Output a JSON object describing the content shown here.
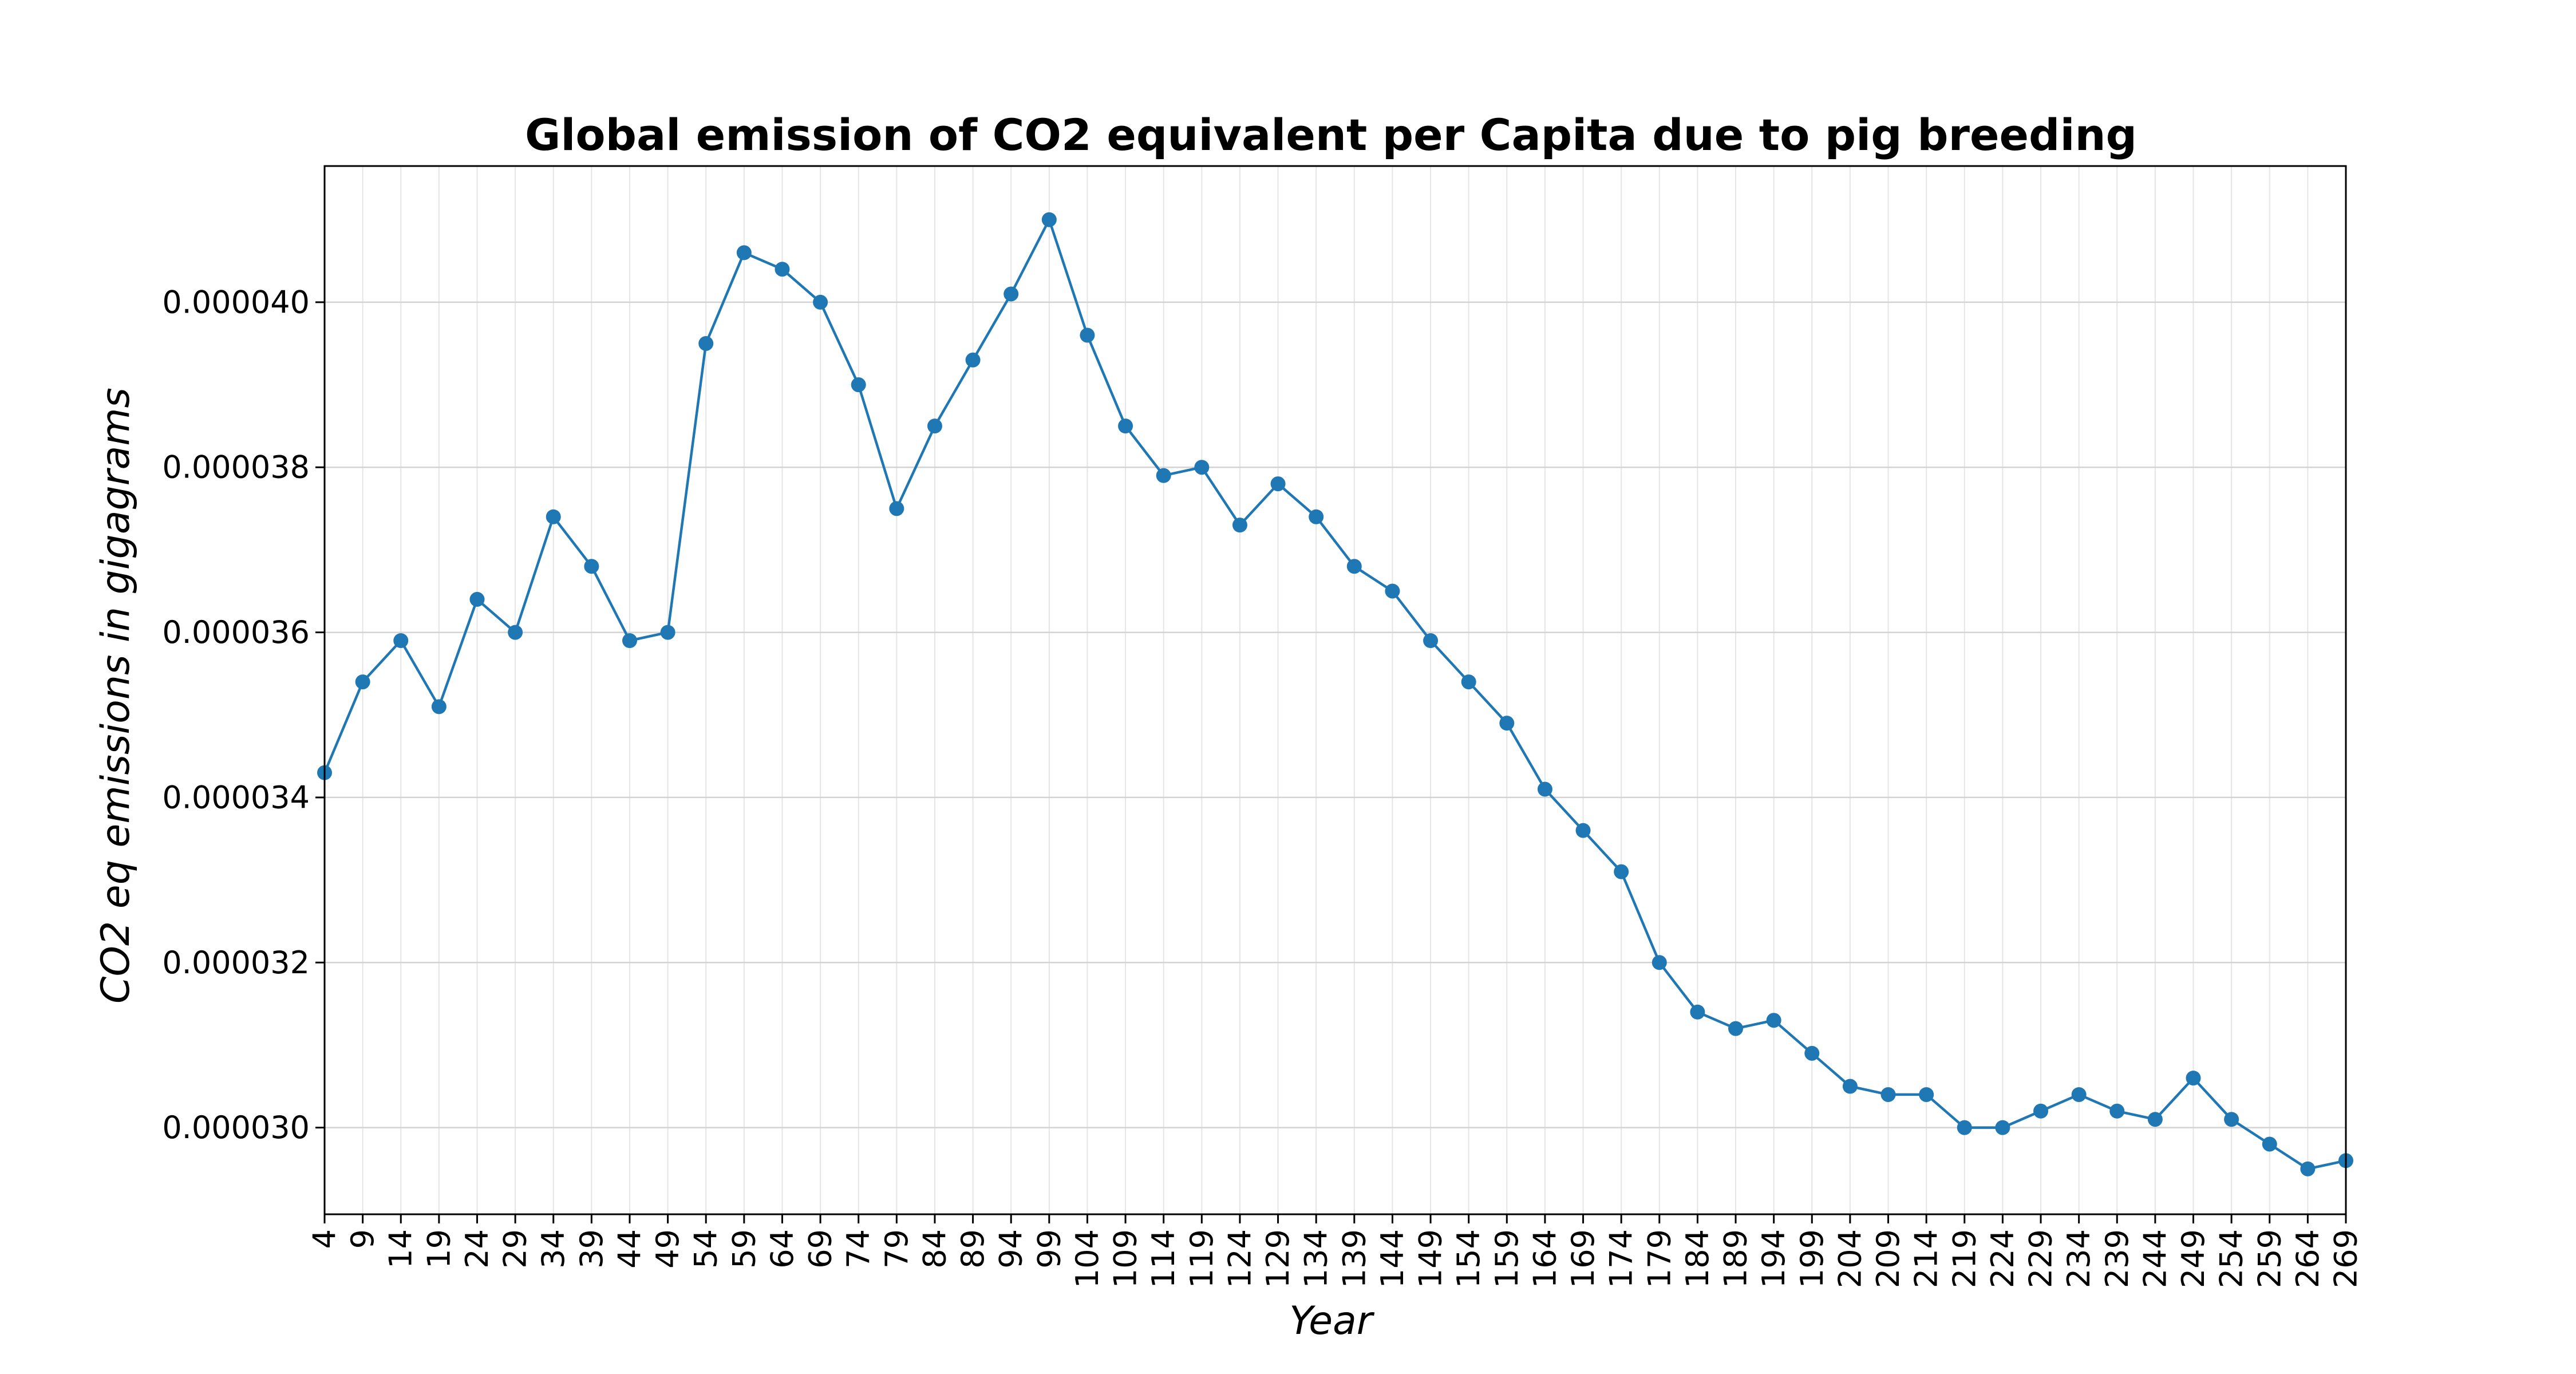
{
  "chart_data": {
    "type": "line",
    "title": "Global emission of CO2 equivalent per Capita due to pig breeding",
    "xlabel": "Year",
    "ylabel": "CO2 eq emissions in gigagrams",
    "xlim": [
      4,
      269
    ],
    "ylim": [
      2.895e-05,
      4.165e-05
    ],
    "grid": true,
    "y_ticks": [
      "0.000030",
      "0.000032",
      "0.000034",
      "0.000036",
      "0.000038",
      "0.000040"
    ],
    "y_tick_values": [
      3e-05,
      3.2e-05,
      3.4e-05,
      3.6e-05,
      3.8e-05,
      4e-05
    ],
    "x_ticks": [
      4,
      9,
      14,
      19,
      24,
      29,
      34,
      39,
      44,
      49,
      54,
      59,
      64,
      69,
      74,
      79,
      84,
      89,
      94,
      99,
      104,
      109,
      114,
      119,
      124,
      129,
      134,
      139,
      144,
      149,
      154,
      159,
      164,
      169,
      174,
      179,
      184,
      189,
      194,
      199,
      204,
      209,
      214,
      219,
      224,
      229,
      234,
      239,
      244,
      249,
      254,
      259,
      264,
      269
    ],
    "colors": {
      "line": "#1f77b4",
      "grid": "#d3d3d3"
    },
    "series": [
      {
        "x": [
          4,
          9,
          14,
          19,
          24,
          29,
          34,
          39,
          44,
          49,
          54,
          59,
          64,
          69,
          74,
          79,
          84,
          89,
          94,
          99,
          104,
          109,
          114,
          119,
          124,
          129,
          134,
          139,
          144,
          149,
          154,
          159,
          164,
          169,
          174,
          179,
          184,
          189,
          194,
          199,
          204,
          209,
          214,
          219,
          224,
          229,
          234,
          239,
          244,
          249,
          254,
          259,
          264,
          269
        ],
        "values": [
          3.43e-05,
          3.54e-05,
          3.59e-05,
          3.51e-05,
          3.64e-05,
          3.6e-05,
          3.74e-05,
          3.68e-05,
          3.59e-05,
          3.6e-05,
          3.95e-05,
          4.06e-05,
          4.04e-05,
          4e-05,
          3.9e-05,
          3.75e-05,
          3.85e-05,
          3.93e-05,
          4.01e-05,
          4.1e-05,
          3.96e-05,
          3.85e-05,
          3.79e-05,
          3.8e-05,
          3.73e-05,
          3.78e-05,
          3.74e-05,
          3.68e-05,
          3.65e-05,
          3.59e-05,
          3.54e-05,
          3.49e-05,
          3.41e-05,
          3.36e-05,
          3.31e-05,
          3.2e-05,
          3.14e-05,
          3.12e-05,
          3.13e-05,
          3.09e-05,
          3.05e-05,
          3.04e-05,
          3.04e-05,
          3e-05,
          3e-05,
          3.02e-05,
          3.04e-05,
          3.02e-05,
          3.01e-05,
          3.06e-05,
          3.01e-05,
          2.98e-05,
          2.95e-05,
          2.96e-05
        ]
      }
    ]
  }
}
